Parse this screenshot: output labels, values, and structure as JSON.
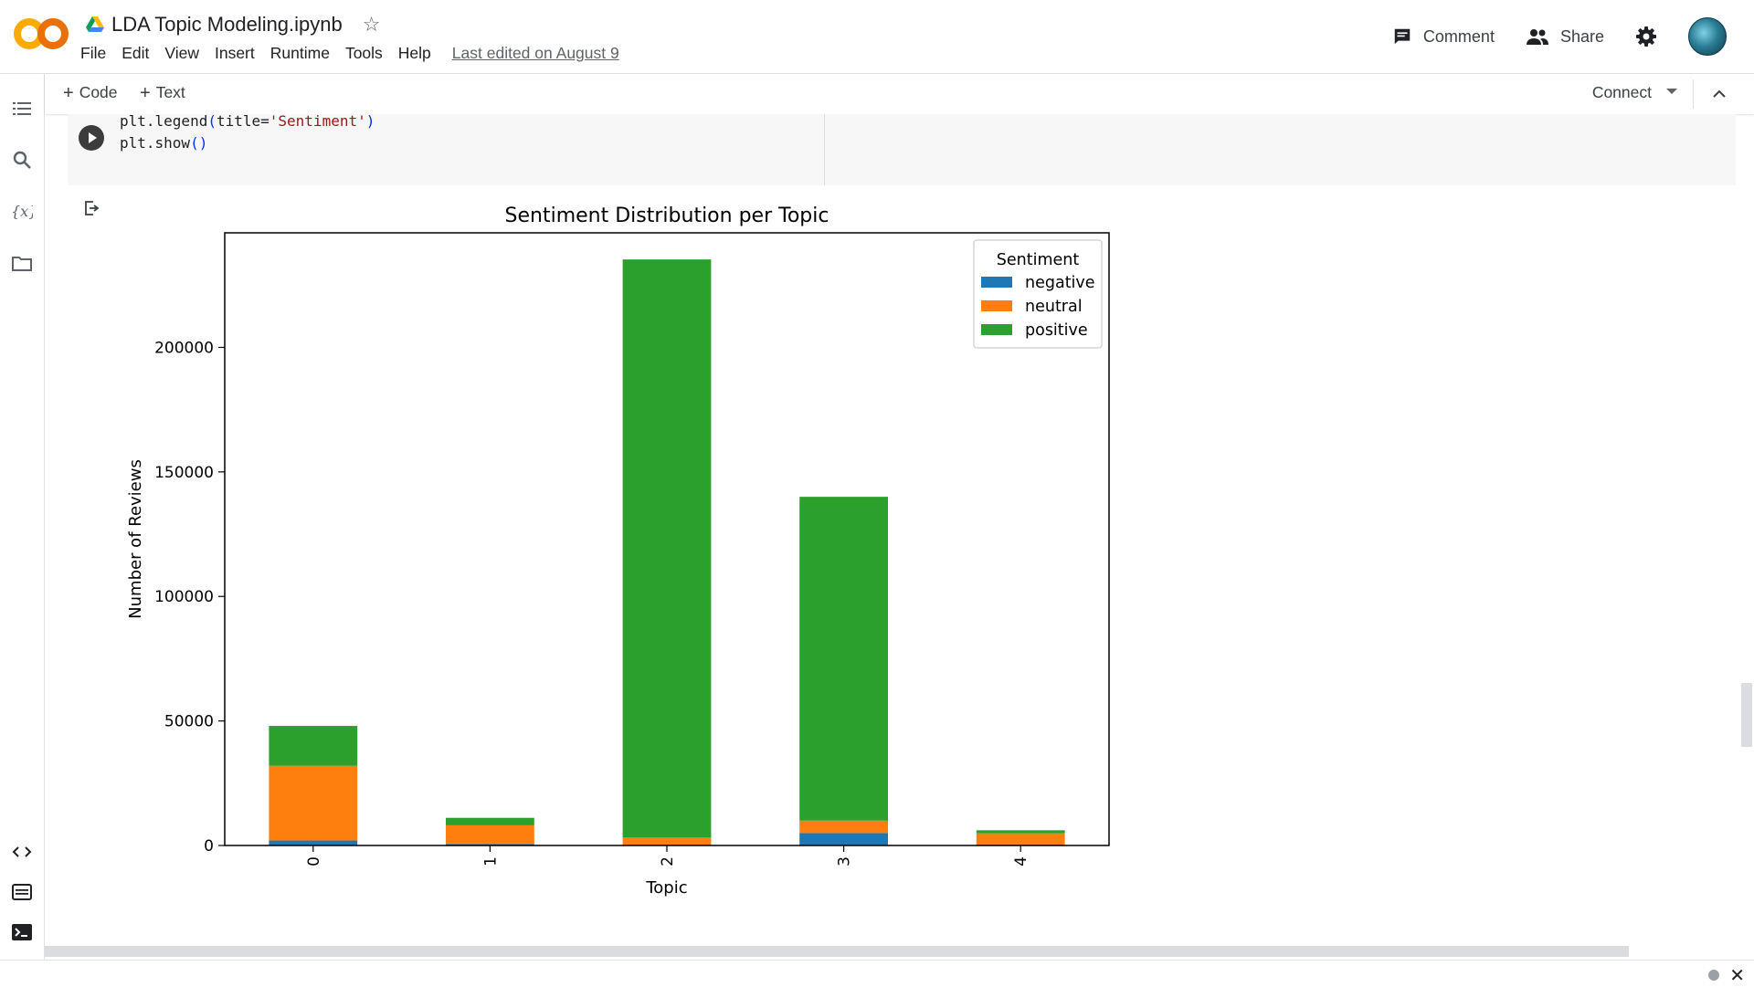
{
  "header": {
    "title": "LDA Topic Modeling.ipynb",
    "menu": [
      "File",
      "Edit",
      "View",
      "Insert",
      "Runtime",
      "Tools",
      "Help"
    ],
    "last_edited": "Last edited on August 9",
    "comment_label": "Comment",
    "share_label": "Share",
    "logo_text": "CO"
  },
  "toolbar": {
    "code_label": "Code",
    "text_label": "Text",
    "connect_label": "Connect"
  },
  "cell": {
    "code_lines": [
      {
        "pre": "plt.legend",
        "paren_open": "(",
        "mid": "title=",
        "str": "'Sentiment'",
        "paren_close": ")"
      },
      {
        "pre": "plt.show",
        "paren_open": "(",
        "mid": "",
        "str": "",
        "paren_close": ")"
      }
    ]
  },
  "chart_data": {
    "type": "bar",
    "stacked": true,
    "title": "Sentiment Distribution per Topic",
    "xlabel": "Topic",
    "ylabel": "Number of Reviews",
    "categories": [
      "0",
      "1",
      "2",
      "3",
      "4"
    ],
    "series": [
      {
        "name": "negative",
        "color": "#1f77b4",
        "values": [
          2000,
          600,
          300,
          5000,
          400
        ]
      },
      {
        "name": "neutral",
        "color": "#ff7f0e",
        "values": [
          30000,
          7500,
          3000,
          5000,
          4500
        ]
      },
      {
        "name": "positive",
        "color": "#2ca02c",
        "values": [
          16000,
          3000,
          232000,
          130000,
          1200
        ]
      }
    ],
    "yticks": [
      0,
      50000,
      100000,
      150000,
      200000
    ],
    "ylim": [
      0,
      246000
    ],
    "legend": {
      "title": "Sentiment",
      "position": "top-right"
    },
    "grid": false
  },
  "colors": {
    "logo_orange": "#f9ab00",
    "logo_dark_orange": "#e8710a"
  }
}
